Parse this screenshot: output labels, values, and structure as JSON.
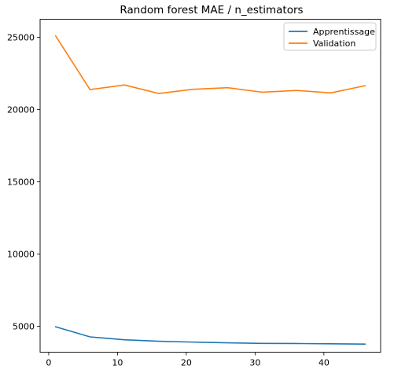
{
  "chart_data": {
    "type": "line",
    "title": "Random forest MAE / n_estimators",
    "xlabel": "",
    "ylabel": "",
    "xlim": [
      -1.25,
      48.25
    ],
    "ylim": [
      3200,
      26250
    ],
    "xticks": [
      0,
      10,
      20,
      30,
      40
    ],
    "yticks": [
      5000,
      10000,
      15000,
      20000,
      25000
    ],
    "grid": false,
    "legend_position": "top-right",
    "x": [
      1,
      6,
      11,
      16,
      21,
      26,
      31,
      36,
      41,
      46
    ],
    "series": [
      {
        "name": "Apprentissage",
        "color": "#1f77b4",
        "values": [
          4960,
          4260,
          4060,
          3960,
          3900,
          3850,
          3810,
          3800,
          3780,
          3760
        ]
      },
      {
        "name": "Validation",
        "color": "#ff7f0e",
        "values": [
          25100,
          21380,
          21700,
          21110,
          21400,
          21510,
          21200,
          21320,
          21150,
          21650
        ]
      }
    ]
  }
}
